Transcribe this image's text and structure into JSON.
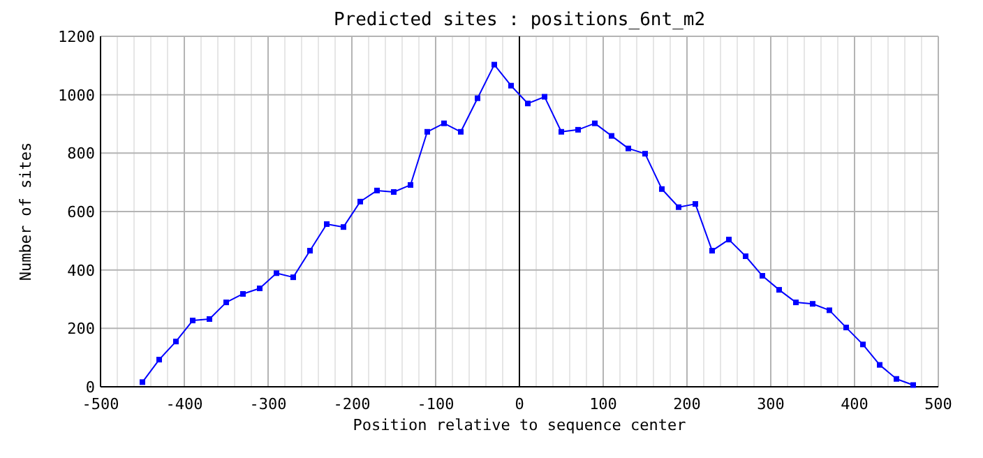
{
  "chart_data": {
    "type": "line",
    "title": "Predicted sites : positions_6nt_m2",
    "xlabel": "Position relative to sequence center",
    "ylabel": "Number of sites",
    "x": [
      -450,
      -430,
      -410,
      -390,
      -370,
      -350,
      -330,
      -310,
      -290,
      -270,
      -250,
      -230,
      -210,
      -190,
      -170,
      -150,
      -130,
      -110,
      -90,
      -70,
      -50,
      -30,
      -10,
      10,
      30,
      50,
      70,
      90,
      110,
      130,
      150,
      170,
      190,
      210,
      230,
      250,
      270,
      290,
      310,
      330,
      350,
      370,
      390,
      410,
      430,
      450,
      470
    ],
    "series": [
      {
        "color": "#0000ff",
        "values": [
          16,
          93,
          155,
          227,
          232,
          289,
          318,
          337,
          389,
          375,
          466,
          557,
          547,
          634,
          672,
          667,
          691,
          873,
          902,
          873,
          988,
          1103,
          1031,
          970,
          993,
          873,
          880,
          902,
          859,
          816,
          798,
          677,
          615,
          626,
          466,
          504,
          447,
          380,
          332,
          289,
          284,
          262,
          203,
          145,
          75,
          27,
          6
        ]
      }
    ],
    "xlim": [
      -500,
      500
    ],
    "xticks": [
      -500,
      {
        "value": -480,
        "label": null
      },
      {
        "value": -460,
        "label": null
      },
      {
        "value": -440,
        "label": null
      },
      {
        "value": -420,
        "label": null
      },
      -400,
      {
        "value": -380,
        "label": null
      },
      {
        "value": -360,
        "label": null
      },
      {
        "value": -340,
        "label": null
      },
      {
        "value": -320,
        "label": null
      },
      -300,
      {
        "value": -280,
        "label": null
      },
      {
        "value": -260,
        "label": null
      },
      {
        "value": -240,
        "label": null
      },
      {
        "value": -220,
        "label": null
      },
      -200,
      {
        "value": -180,
        "label": null
      },
      {
        "value": -160,
        "label": null
      },
      {
        "value": -140,
        "label": null
      },
      {
        "value": -120,
        "label": null
      },
      -100,
      {
        "value": -80,
        "label": null
      },
      {
        "value": -60,
        "label": null
      },
      {
        "value": -40,
        "label": null
      },
      {
        "value": -20,
        "label": null
      },
      0,
      {
        "value": 20,
        "label": null
      },
      {
        "value": 40,
        "label": null
      },
      {
        "value": 60,
        "label": null
      },
      {
        "value": 80,
        "label": null
      },
      100,
      {
        "value": 120,
        "label": null
      },
      {
        "value": 140,
        "label": null
      },
      {
        "value": 160,
        "label": null
      },
      {
        "value": 180,
        "label": null
      },
      200,
      {
        "value": 220,
        "label": null
      },
      {
        "value": 240,
        "label": null
      },
      {
        "value": 260,
        "label": null
      },
      {
        "value": 280,
        "label": null
      },
      300,
      {
        "value": 320,
        "label": null
      },
      {
        "value": 340,
        "label": null
      },
      {
        "value": 360,
        "label": null
      },
      {
        "value": 380,
        "label": null
      },
      400,
      {
        "value": 420,
        "label": null
      },
      {
        "value": 440,
        "label": null
      },
      {
        "value": 460,
        "label": null
      },
      {
        "value": 480,
        "label": null
      },
      500
    ],
    "ylim": [
      0,
      1200
    ],
    "yticks": [
      0,
      200,
      400,
      600,
      800,
      1000,
      1200
    ],
    "grid": true,
    "marker": "square",
    "line_style": "solid",
    "ref_lines": [
      {
        "axis": "x",
        "value": 0,
        "color": "#000000"
      }
    ]
  }
}
